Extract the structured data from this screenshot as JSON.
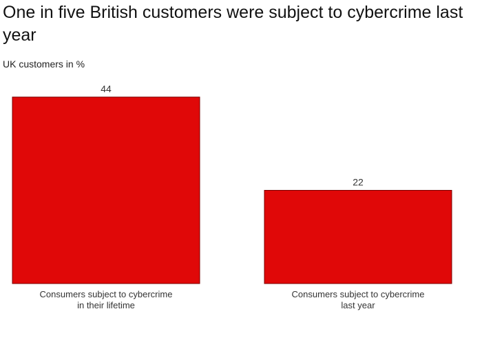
{
  "title": "One in five British customers were subject to cybercrime last year",
  "subtitle": "UK customers in %",
  "colors": {
    "bar": "#e00808",
    "bar_stroke": "#7a0000",
    "label": "#333333"
  },
  "chart_data": {
    "type": "bar",
    "title": "One in five British customers were subject to cybercrime last year",
    "subtitle": "UK customers in %",
    "xlabel": "",
    "ylabel": "",
    "categories": [
      "Consumers subject to cybercrime in their lifetime",
      "Consumers subject to cybercrime last year"
    ],
    "values": [
      44,
      22
    ],
    "data_labels": [
      "44",
      "22"
    ],
    "ylim": [
      0,
      44
    ],
    "grid": false,
    "legend": "none"
  }
}
